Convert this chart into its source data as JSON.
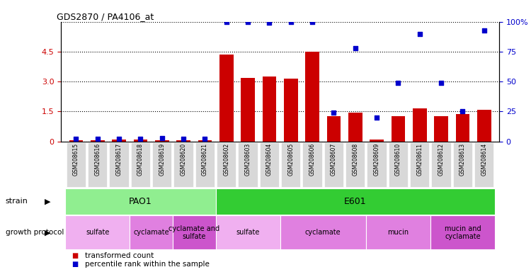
{
  "title": "GDS2870 / PA4106_at",
  "samples": [
    "GSM208615",
    "GSM208616",
    "GSM208617",
    "GSM208618",
    "GSM208619",
    "GSM208620",
    "GSM208621",
    "GSM208602",
    "GSM208603",
    "GSM208604",
    "GSM208605",
    "GSM208606",
    "GSM208607",
    "GSM208608",
    "GSM208609",
    "GSM208610",
    "GSM208611",
    "GSM208612",
    "GSM208613",
    "GSM208614"
  ],
  "transformed_count": [
    0.05,
    0.05,
    0.08,
    0.08,
    0.05,
    0.05,
    0.05,
    4.35,
    3.2,
    3.25,
    3.15,
    4.5,
    1.25,
    1.45,
    0.1,
    1.25,
    1.65,
    1.28,
    1.38,
    1.6
  ],
  "percentile_rank": [
    2,
    2,
    2,
    2,
    3,
    2,
    2,
    100,
    100,
    99,
    100,
    100,
    24,
    78,
    20,
    49,
    90,
    49,
    25,
    93
  ],
  "ylim_left": [
    0,
    6
  ],
  "ylim_right": [
    0,
    100
  ],
  "yticks_left": [
    0,
    1.5,
    3.0,
    4.5
  ],
  "yticks_right": [
    0,
    25,
    50,
    75,
    100
  ],
  "ytick_labels_right": [
    "0",
    "25",
    "50",
    "75",
    "100%"
  ],
  "bar_color": "#cc0000",
  "dot_color": "#0000cc",
  "strain_spans": [
    {
      "name": "PAO1",
      "start": 0,
      "end": 7,
      "color": "#90ee90"
    },
    {
      "name": "E601",
      "start": 7,
      "end": 20,
      "color": "#33cc33"
    }
  ],
  "protocol_spans": [
    {
      "label": "sulfate",
      "start": 0,
      "end": 3,
      "color": "#f0b0f0"
    },
    {
      "label": "cyclamate",
      "start": 3,
      "end": 5,
      "color": "#e080e0"
    },
    {
      "label": "cyclamate and\nsulfate",
      "start": 5,
      "end": 7,
      "color": "#cc55cc"
    },
    {
      "label": "sulfate",
      "start": 7,
      "end": 10,
      "color": "#f0b0f0"
    },
    {
      "label": "cyclamate",
      "start": 10,
      "end": 14,
      "color": "#e080e0"
    },
    {
      "label": "mucin",
      "start": 14,
      "end": 17,
      "color": "#e080e0"
    },
    {
      "label": "mucin and\ncyclamate",
      "start": 17,
      "end": 20,
      "color": "#cc55cc"
    }
  ],
  "legend_items": [
    {
      "label": "transformed count",
      "color": "#cc0000"
    },
    {
      "label": "percentile rank within the sample",
      "color": "#0000cc"
    }
  ],
  "xtick_bg": "#d8d8d8"
}
